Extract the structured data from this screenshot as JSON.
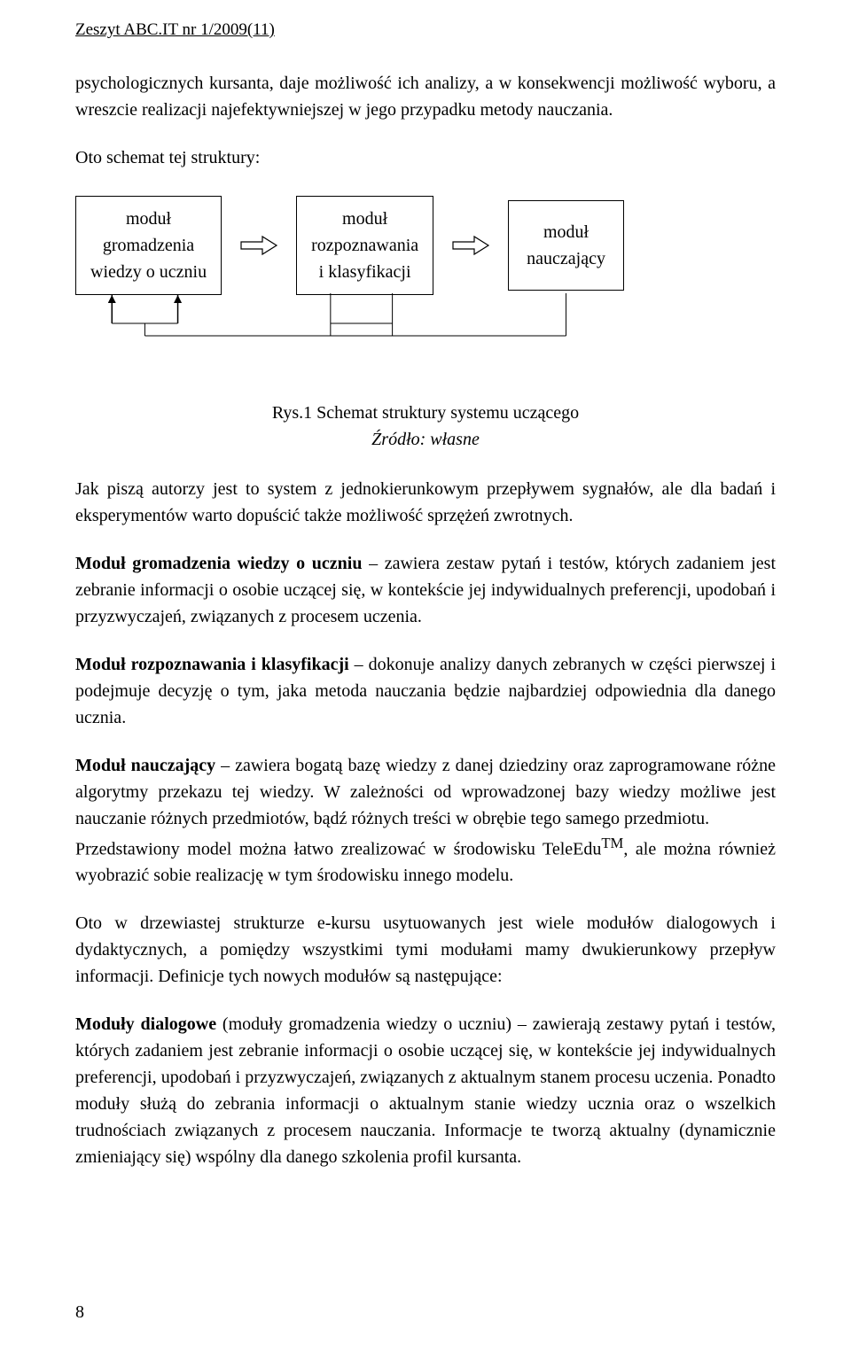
{
  "header": "Zeszyt ABC.IT nr 1/2009(11)",
  "intro_para": "psychologicznych kursanta, daje możliwość ich analizy, a w konsekwencji możliwość wyboru, a wreszcie realizacji najefektywniejszej w jego przypadku metody nauczania.",
  "schema_intro": "Oto schemat tej struktury:",
  "flow": {
    "box1": {
      "line1": "moduł",
      "line2": "gromadzenia",
      "line3": "wiedzy o uczniu"
    },
    "box2": {
      "line1": "moduł",
      "line2": "rozpoznawania",
      "line3": "i klasyfikacji"
    },
    "box3": {
      "line1": "moduł",
      "line2": "nauczający"
    }
  },
  "caption": {
    "main": "Rys.1 Schemat struktury systemu uczącego",
    "src": "Źródło: własne"
  },
  "p_jak": "Jak piszą autorzy jest to system z jednokierunkowym przepływem sygnałów, ale dla badań i eksperymentów warto dopuścić także możliwość sprzężeń zwrotnych.",
  "p_m1_bold": "Moduł gromadzenia wiedzy o uczniu",
  "p_m1_rest": " – zawiera zestaw pytań i testów, których zadaniem jest zebranie informacji o osobie uczącej się, w kontekście jej indywidualnych preferencji, upodobań i przyzwyczajeń, związanych z procesem uczenia.",
  "p_m2_bold": "Moduł rozpoznawania i klasyfikacji",
  "p_m2_rest": " – dokonuje analizy danych zebranych w części pierwszej i podejmuje decyzję o tym, jaka metoda nauczania będzie najbardziej odpowiednia dla danego ucznia.",
  "p_m3_bold": "Moduł nauczający",
  "p_m3_rest": " – zawiera bogatą bazę wiedzy z danej dziedziny oraz zaprogramowane różne algorytmy przekazu tej wiedzy. W zależności od wprowadzonej bazy wiedzy możliwe jest nauczanie różnych przedmiotów, bądź różnych treści w obrębie tego samego przedmiotu.",
  "p_tele1": "Przedstawiony model można łatwo zrealizować w środowisku TeleEdu",
  "p_tele_tm": "TM",
  "p_tele2": ", ale można również wyobrazić sobie realizację w tym środowisku innego modelu.",
  "p_oto": "Oto w drzewiastej strukturze e-kursu usytuowanych jest wiele modułów dialogowych i dydaktycznych, a pomiędzy wszystkimi tymi modułami mamy dwukierunkowy przepływ informacji. Definicje tych nowych modułów są następujące:",
  "p_dial_bold": "Moduły dialogowe",
  "p_dial_rest": " (moduły gromadzenia wiedzy o uczniu) – zawierają zestawy pytań i testów, których zadaniem jest zebranie informacji o osobie uczącej się, w kontekście jej indywidualnych preferencji, upodobań i przyzwyczajeń, związanych z aktualnym stanem procesu uczenia. Ponadto moduły służą do zebrania informacji o aktualnym stanie wiedzy ucznia oraz o wszelkich trudnościach związanych z procesem nauczania. Informacje te tworzą aktualny (dynamicznie zmieniający się) wspólny dla danego szkolenia profil kursanta.",
  "page_number": "8",
  "style": {
    "arrow_fill": "#ffffff",
    "arrow_stroke": "#000000",
    "feedback_stroke": "#000000",
    "box_border": "#000000"
  }
}
